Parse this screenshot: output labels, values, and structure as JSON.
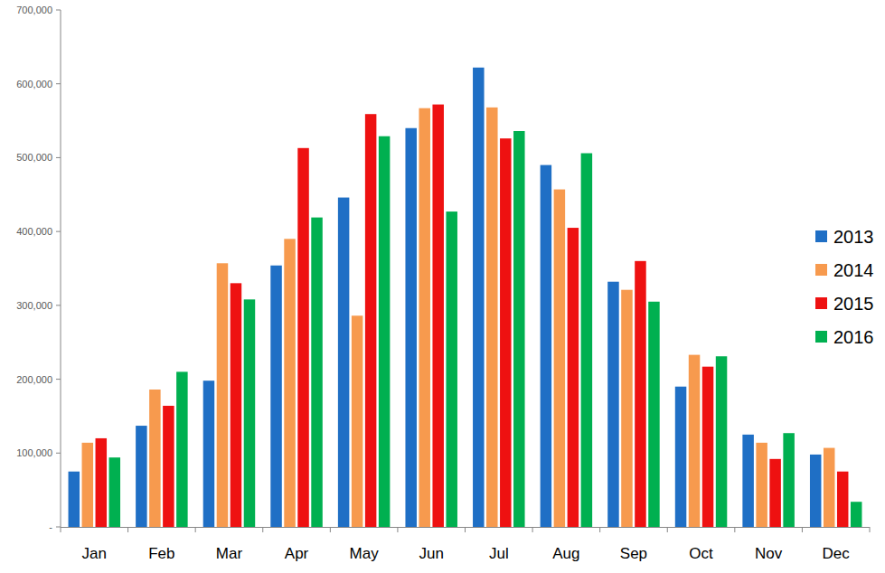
{
  "chart_data": {
    "type": "bar",
    "categories": [
      "Jan",
      "Feb",
      "Mar",
      "Apr",
      "May",
      "Jun",
      "Jul",
      "Aug",
      "Sep",
      "Oct",
      "Nov",
      "Dec"
    ],
    "series": [
      {
        "name": "2013",
        "color": "#1f6fc5",
        "values": [
          75000,
          137000,
          198000,
          354000,
          446000,
          540000,
          622000,
          490000,
          332000,
          190000,
          125000,
          98000
        ]
      },
      {
        "name": "2014",
        "color": "#f79a4e",
        "values": [
          114000,
          186000,
          357000,
          390000,
          286000,
          567000,
          568000,
          457000,
          321000,
          233000,
          114000,
          107000
        ]
      },
      {
        "name": "2015",
        "color": "#ee1111",
        "values": [
          120000,
          164000,
          330000,
          513000,
          559000,
          572000,
          526000,
          405000,
          360000,
          217000,
          92000,
          75000
        ]
      },
      {
        "name": "2016",
        "color": "#00b050",
        "values": [
          94000,
          210000,
          308000,
          419000,
          529000,
          427000,
          536000,
          506000,
          305000,
          231000,
          127000,
          34000
        ]
      }
    ],
    "ylim": [
      0,
      700000
    ],
    "yticks": [
      {
        "value": 0,
        "label": "-"
      },
      {
        "value": 100000,
        "label": "100,000"
      },
      {
        "value": 200000,
        "label": "200,000"
      },
      {
        "value": 300000,
        "label": "300,000"
      },
      {
        "value": 400000,
        "label": "400,000"
      },
      {
        "value": 500000,
        "label": "500,000"
      },
      {
        "value": 600000,
        "label": "600,000"
      },
      {
        "value": 700000,
        "label": "700,000"
      }
    ],
    "grid": false,
    "legend": "right"
  }
}
